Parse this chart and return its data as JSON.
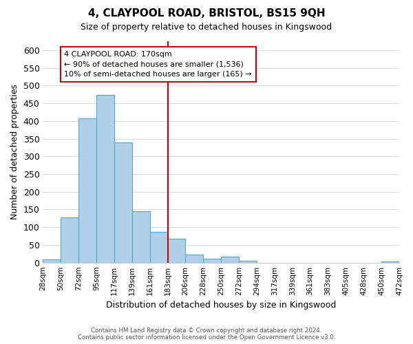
{
  "title": "4, CLAYPOOL ROAD, BRISTOL, BS15 9QH",
  "subtitle": "Size of property relative to detached houses in Kingswood",
  "xlabel": "Distribution of detached houses by size in Kingswood",
  "ylabel": "Number of detached properties",
  "bin_labels": [
    "28sqm",
    "50sqm",
    "72sqm",
    "95sqm",
    "117sqm",
    "139sqm",
    "161sqm",
    "183sqm",
    "206sqm",
    "228sqm",
    "250sqm",
    "272sqm",
    "294sqm",
    "317sqm",
    "339sqm",
    "361sqm",
    "383sqm",
    "405sqm",
    "428sqm",
    "450sqm",
    "472sqm"
  ],
  "bar_heights": [
    10,
    127,
    408,
    474,
    340,
    146,
    86,
    68,
    22,
    12,
    16,
    5,
    0,
    0,
    0,
    0,
    0,
    0,
    0,
    4
  ],
  "bar_color": "#afd0e8",
  "bar_edge_color": "#5ba3cc",
  "vline_x": 7,
  "vline_color": "#cc0000",
  "annotation_line1": "4 CLAYPOOL ROAD: 170sqm",
  "annotation_line2": "← 90% of detached houses are smaller (1,536)",
  "annotation_line3": "10% of semi-detached houses are larger (165) →",
  "annotation_box_color": "#ffffff",
  "annotation_box_edge": "#cc0000",
  "ylim": [
    0,
    625
  ],
  "yticks": [
    0,
    50,
    100,
    150,
    200,
    250,
    300,
    350,
    400,
    450,
    500,
    550,
    600
  ],
  "footer_line1": "Contains HM Land Registry data © Crown copyright and database right 2024.",
  "footer_line2": "Contains public sector information licensed under the Open Government Licence v3.0.",
  "background_color": "#ffffff",
  "grid_color": "#dddddd"
}
